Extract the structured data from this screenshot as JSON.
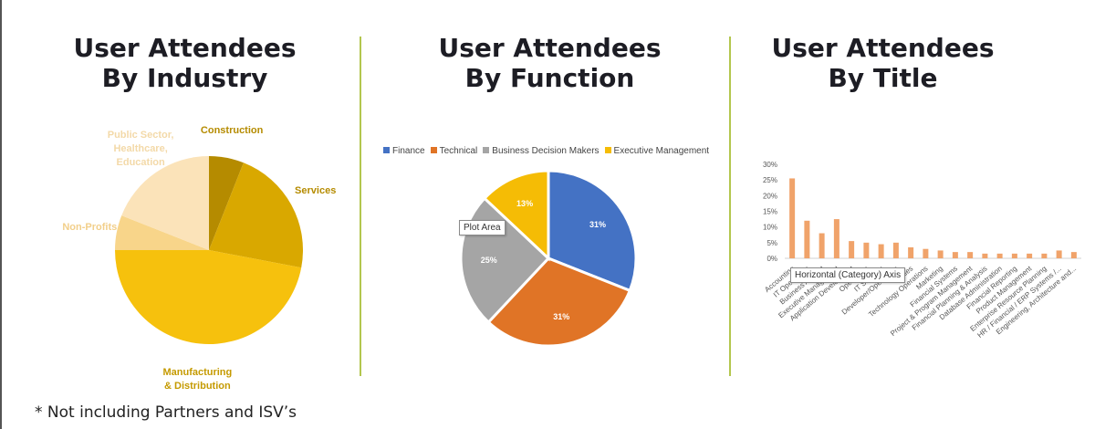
{
  "panels": [
    {
      "title_line1": "User Attendees",
      "title_line2": "By Industry"
    },
    {
      "title_line1": "User Attendees",
      "title_line2": "By Function"
    },
    {
      "title_line1": "User Attendees",
      "title_line2": "By Title"
    }
  ],
  "footnote": "* Not including Partners and ISV’s",
  "tooltips": {
    "plot_area": "Plot Area",
    "horizontal_axis": "Horizontal (Category) Axis"
  },
  "chart_data": [
    {
      "type": "pie",
      "title": "User Attendees By Industry",
      "slices": [
        {
          "label": "Construction",
          "value": 6,
          "color": "#b58b00"
        },
        {
          "label": "Services",
          "value": 22,
          "color": "#d9a800"
        },
        {
          "label": "Manufacturing & Distribution",
          "value": 47,
          "color": "#f6c10d"
        },
        {
          "label": "Non-Profits",
          "value": 6,
          "color": "#f8d58a"
        },
        {
          "label": "Public Sector, Healthcare, Education",
          "value": 19,
          "color": "#fbe3b9"
        }
      ],
      "label_colors": {
        "Construction": "#b58b00",
        "Services": "#b58b00",
        "Manufacturing & Distribution": "#c59a00",
        "Non-Profits": "#f2cf8a",
        "Public Sector, Healthcare, Education": "#f3d9a8"
      },
      "label_lines": {
        "Construction": [
          "Construction"
        ],
        "Services": [
          "Services"
        ],
        "Manufacturing & Distribution": [
          "Manufacturing",
          "& Distribution"
        ],
        "Non-Profits": [
          "Non-Profits"
        ],
        "Public Sector, Healthcare, Education": [
          "Public Sector,",
          "Healthcare,",
          "Education"
        ]
      }
    },
    {
      "type": "pie",
      "title": "User Attendees By Function",
      "legend_position": "top",
      "slices": [
        {
          "label": "Finance",
          "value": 31,
          "display": "31%",
          "color": "#4472c4"
        },
        {
          "label": "Technical",
          "value": 31,
          "display": "31%",
          "color": "#e07426"
        },
        {
          "label": "Business Decision Makers",
          "value": 25,
          "display": "25%",
          "color": "#a5a5a5"
        },
        {
          "label": "Executive Management",
          "value": 13,
          "display": "13%",
          "color": "#f5bc05"
        }
      ]
    },
    {
      "type": "bar",
      "title": "User Attendees By Title",
      "color": "#f0a36a",
      "ylim": [
        0,
        30
      ],
      "yticks": [
        "0%",
        "5%",
        "10%",
        "15%",
        "20%",
        "25%",
        "30%"
      ],
      "categories": [
        "Accounting",
        "IT Operations",
        "Business Analyst",
        "Executive Management",
        "Application Development",
        "Operations",
        "IT Strategy",
        "Developer/Operations",
        "Sales",
        "Technology Operations",
        "Marketing",
        "Financial Systems",
        "Project & Program Management",
        "Financial Planning & Analysis",
        "Database Administration",
        "Financial Reporting",
        "Product Management",
        "Enterprise Resource Planning",
        "HR / Financial / ERP Systems /...",
        "Engineering, Architecture and..."
      ],
      "values": [
        25.5,
        12,
        8,
        12.5,
        5.5,
        5,
        4.5,
        5,
        3.5,
        3,
        2.5,
        2,
        2,
        1.5,
        1.5,
        1.5,
        1.5,
        1.5,
        2.5,
        2
      ]
    }
  ]
}
